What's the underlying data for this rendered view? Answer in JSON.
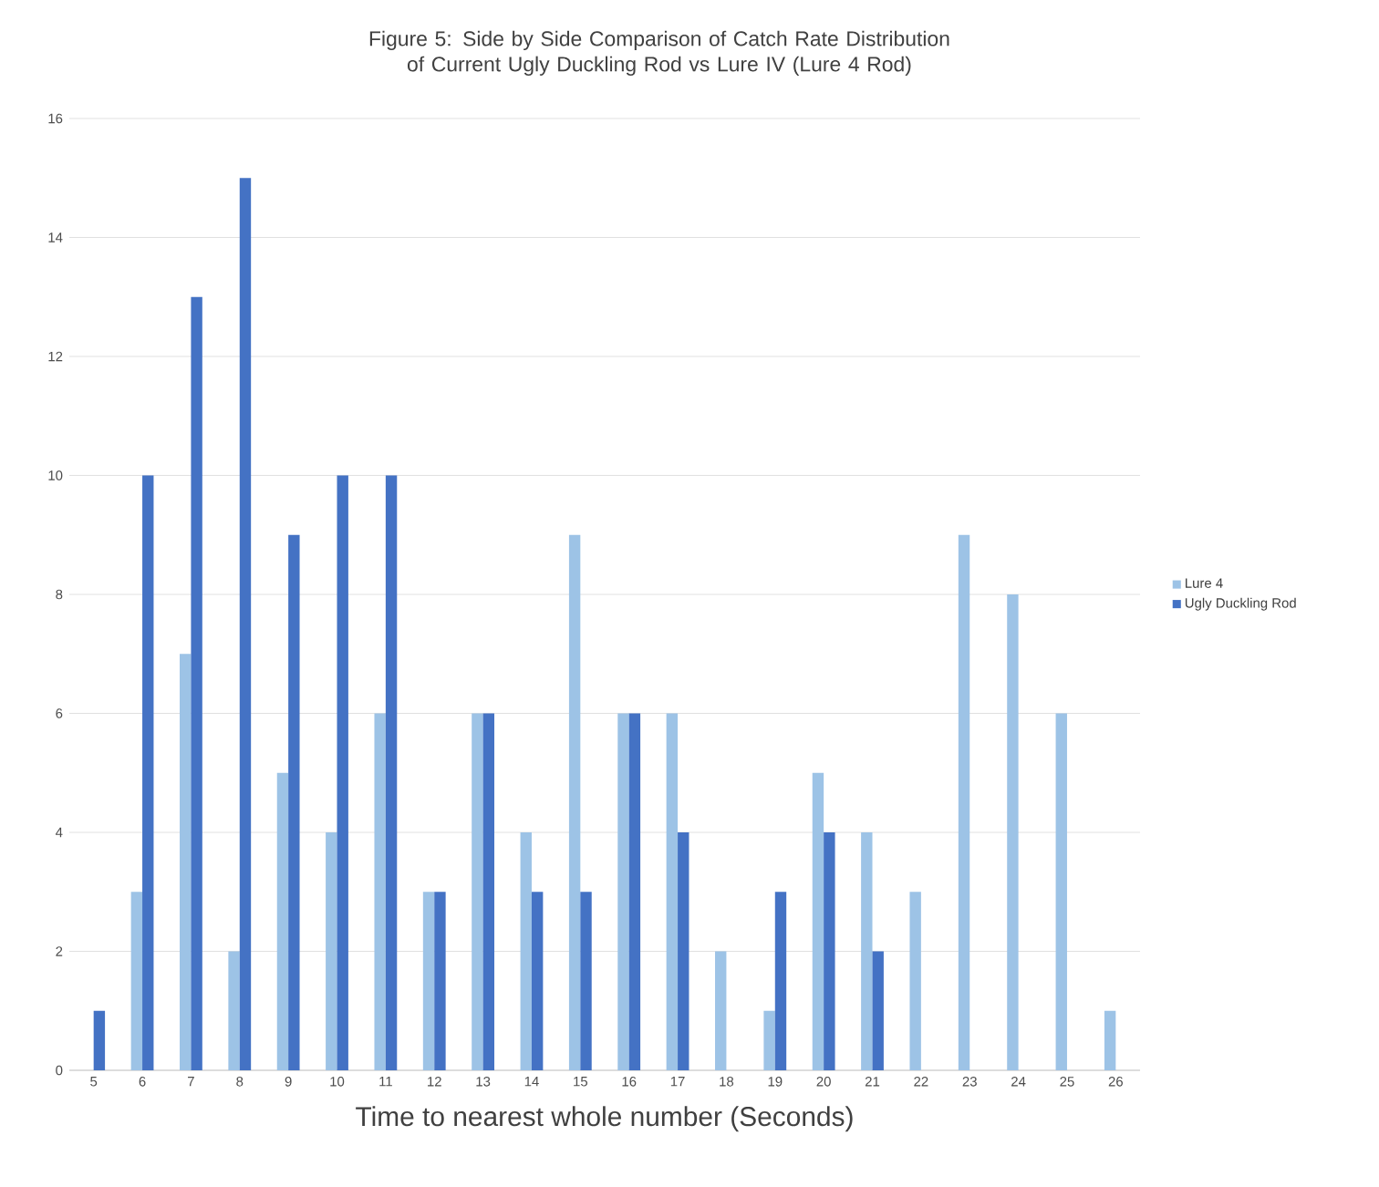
{
  "chart_data": {
    "type": "bar",
    "title": "Figure 5: Side by Side Comparison of Catch Rate Distribution of Current Ugly Duckling Rod vs Lure IV (Lure 4 Rod)",
    "xlabel": "Time to  nearest whole number (Seconds)",
    "categories": [
      "5",
      "6",
      "7",
      "8",
      "9",
      "10",
      "11",
      "12",
      "13",
      "14",
      "15",
      "16",
      "17",
      "18",
      "19",
      "20",
      "21",
      "22",
      "23",
      "24",
      "25",
      "26"
    ],
    "series": [
      {
        "name": "Lure 4",
        "color": "#9dc3e6",
        "values": [
          0,
          3,
          7,
          2,
          5,
          4,
          6,
          3,
          6,
          4,
          9,
          6,
          6,
          2,
          1,
          5,
          4,
          3,
          9,
          8,
          6,
          1
        ]
      },
      {
        "name": "Ugly Duckling Rod",
        "color": "#4472c4",
        "values": [
          1,
          10,
          13,
          15,
          9,
          10,
          10,
          3,
          6,
          3,
          3,
          6,
          4,
          0,
          3,
          4,
          2,
          0,
          0,
          0,
          0,
          0
        ]
      }
    ],
    "ylim": [
      0,
      16
    ],
    "yticks": [
      0,
      2,
      4,
      6,
      8,
      10,
      12,
      14,
      16
    ],
    "grid": "y",
    "legend": "right"
  }
}
